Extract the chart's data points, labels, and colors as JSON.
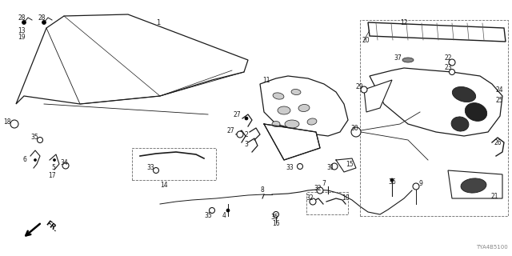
{
  "bg_color": "#ffffff",
  "line_color": "#1a1a1a",
  "text_color": "#1a1a1a",
  "diagram_code": "TYA4B5100",
  "label_fs": 5.5
}
